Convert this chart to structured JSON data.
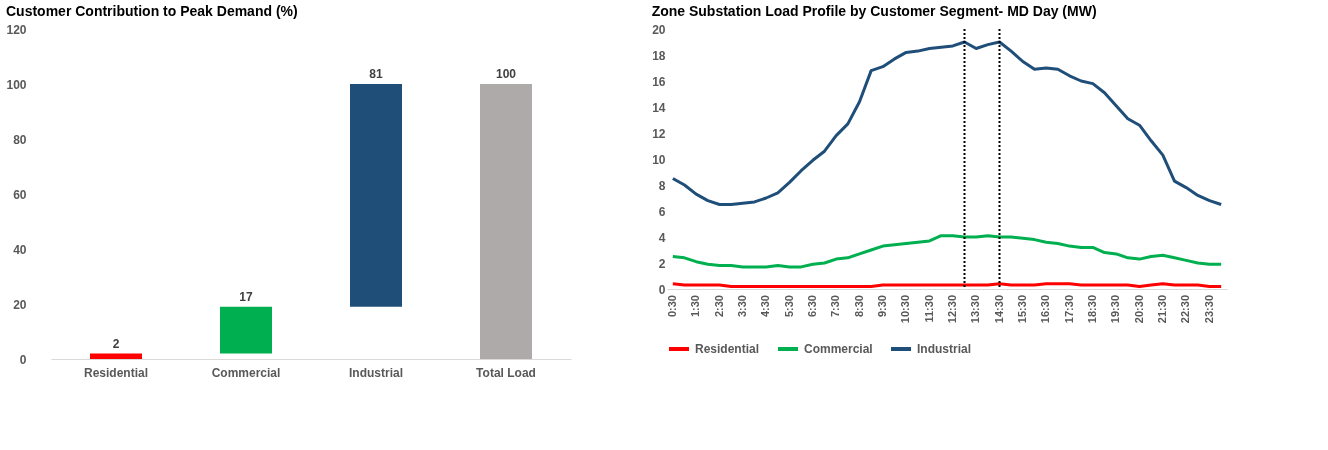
{
  "chart_data": [
    {
      "type": "bar",
      "title": "Customer Contribution to Peak Demand (%)",
      "categories": [
        "Residential",
        "Commercial",
        "Industrial",
        "Total Load"
      ],
      "values": [
        2,
        17,
        81,
        100
      ],
      "base": [
        0,
        2,
        19,
        0
      ],
      "colors": [
        "#ff0000",
        "#00b050",
        "#1f4e79",
        "#aeaaaa"
      ],
      "ylim": [
        0,
        120
      ],
      "yticks": [
        0,
        20,
        40,
        60,
        80,
        100,
        120
      ],
      "data_labels": true,
      "grid": false
    },
    {
      "type": "line",
      "title": "Zone Substation Load Profile by Customer Segment- MD Day (MW)",
      "x": [
        0.5,
        1,
        1.5,
        2,
        2.5,
        3,
        3.5,
        4,
        4.5,
        5,
        5.5,
        6,
        6.5,
        7,
        7.5,
        8,
        8.5,
        9,
        9.5,
        10,
        10.5,
        11,
        11.5,
        12,
        12.5,
        13,
        13.5,
        14,
        14.5,
        15,
        15.5,
        16,
        16.5,
        17,
        17.5,
        18,
        18.5,
        19,
        19.5,
        20,
        20.5,
        21,
        21.5,
        22,
        22.5,
        23,
        23.5,
        24
      ],
      "xlim": [
        0.25,
        24.25
      ],
      "xticks": [
        {
          "value": 0.5,
          "label": "0:30"
        },
        {
          "value": 1.5,
          "label": "1:30"
        },
        {
          "value": 2.5,
          "label": "2:30"
        },
        {
          "value": 3.5,
          "label": "3:30"
        },
        {
          "value": 4.5,
          "label": "4:30"
        },
        {
          "value": 5.5,
          "label": "5:30"
        },
        {
          "value": 6.5,
          "label": "6:30"
        },
        {
          "value": 7.5,
          "label": "7:30"
        },
        {
          "value": 8.5,
          "label": "8:30"
        },
        {
          "value": 9.5,
          "label": "9:30"
        },
        {
          "value": 10.5,
          "label": "10:30"
        },
        {
          "value": 11.5,
          "label": "11:30"
        },
        {
          "value": 12.5,
          "label": "12:30"
        },
        {
          "value": 13.5,
          "label": "13:30"
        },
        {
          "value": 14.5,
          "label": "14:30"
        },
        {
          "value": 15.5,
          "label": "15:30"
        },
        {
          "value": 16.5,
          "label": "16:30"
        },
        {
          "value": 17.5,
          "label": "17:30"
        },
        {
          "value": 18.5,
          "label": "18:30"
        },
        {
          "value": 19.5,
          "label": "19:30"
        },
        {
          "value": 20.5,
          "label": "20:30"
        },
        {
          "value": 21.5,
          "label": "21:30"
        },
        {
          "value": 22.5,
          "label": "22:30"
        },
        {
          "value": 23.5,
          "label": "23:30"
        }
      ],
      "ylim": [
        0,
        20
      ],
      "yticks": [
        0,
        2,
        4,
        6,
        8,
        10,
        12,
        14,
        16,
        18,
        20
      ],
      "grid": false,
      "legend": "bottom",
      "line_style": "solid",
      "marker": "none",
      "ref_lines": [
        {
          "axis": "x",
          "value": 13,
          "color": "#000000",
          "line_style": "dotted"
        },
        {
          "axis": "x",
          "value": 14.5,
          "color": "#000000",
          "line_style": "dotted"
        }
      ],
      "series": [
        {
          "name": "Residential",
          "color": "#ff0000",
          "values": [
            0.4,
            0.3,
            0.3,
            0.3,
            0.3,
            0.2,
            0.2,
            0.2,
            0.2,
            0.2,
            0.2,
            0.2,
            0.2,
            0.2,
            0.2,
            0.2,
            0.2,
            0.2,
            0.3,
            0.3,
            0.3,
            0.3,
            0.3,
            0.3,
            0.3,
            0.3,
            0.3,
            0.3,
            0.4,
            0.3,
            0.3,
            0.3,
            0.4,
            0.4,
            0.4,
            0.3,
            0.3,
            0.3,
            0.3,
            0.3,
            0.2,
            0.3,
            0.4,
            0.3,
            0.3,
            0.3,
            0.2,
            0.2
          ]
        },
        {
          "name": "Commercial",
          "color": "#00b050",
          "values": [
            2.5,
            2.4,
            2.1,
            1.9,
            1.8,
            1.8,
            1.7,
            1.7,
            1.7,
            1.8,
            1.7,
            1.7,
            1.9,
            2.0,
            2.3,
            2.4,
            2.7,
            3.0,
            3.3,
            3.4,
            3.5,
            3.6,
            3.7,
            4.1,
            4.1,
            4.0,
            4.0,
            4.1,
            4.0,
            4.0,
            3.9,
            3.8,
            3.6,
            3.5,
            3.3,
            3.2,
            3.2,
            2.8,
            2.7,
            2.4,
            2.3,
            2.5,
            2.6,
            2.4,
            2.2,
            2.0,
            1.9,
            1.9
          ]
        },
        {
          "name": "Industrial",
          "color": "#1f4e79",
          "values": [
            8.5,
            8.0,
            7.3,
            6.8,
            6.5,
            6.5,
            6.6,
            6.7,
            7.0,
            7.4,
            8.2,
            9.1,
            9.9,
            10.6,
            11.8,
            12.7,
            14.4,
            16.8,
            17.1,
            17.7,
            18.2,
            18.3,
            18.5,
            18.6,
            18.7,
            19.0,
            18.5,
            18.8,
            19.0,
            18.3,
            17.5,
            16.9,
            17.0,
            16.9,
            16.4,
            16.0,
            15.8,
            15.1,
            14.1,
            13.1,
            12.6,
            11.4,
            10.3,
            8.3,
            7.8,
            7.2,
            6.8,
            6.5
          ]
        }
      ]
    }
  ]
}
